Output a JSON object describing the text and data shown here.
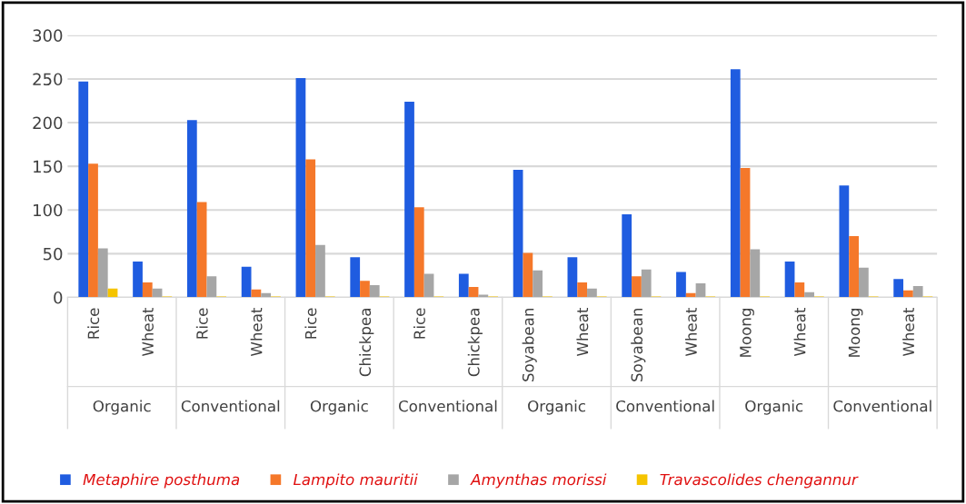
{
  "chart_data": {
    "type": "bar",
    "categories": [
      "Rice",
      "Wheat",
      "Rice",
      "Wheat",
      "Rice",
      "Chickpea",
      "Rice",
      "Chickpea",
      "Soyabean",
      "Wheat",
      "Soyabean",
      "Wheat",
      "Moong",
      "Wheat",
      "Moong",
      "Wheat"
    ],
    "annotations": [
      "Organic",
      "Conventional",
      "Organic",
      "Conventional",
      "Organic",
      "Conventional",
      "Organic",
      "Conventional"
    ],
    "series": [
      {
        "name": "Metaphire posthuma",
        "color": "#1f5ce0",
        "values": [
          247,
          41,
          203,
          35,
          251,
          46,
          224,
          27,
          146,
          46,
          95,
          29,
          261,
          41,
          128,
          21
        ]
      },
      {
        "name": "Lampito mauritii",
        "color": "#f5782a",
        "values": [
          153,
          17,
          109,
          9,
          158,
          19,
          103,
          12,
          51,
          17,
          24,
          5,
          148,
          17,
          70,
          8
        ]
      },
      {
        "name": "Amynthas morissi",
        "color": "#a6a6a6",
        "values": [
          56,
          10,
          24,
          5,
          60,
          14,
          27,
          3,
          31,
          10,
          32,
          16,
          55,
          6,
          34,
          13
        ]
      },
      {
        "name": "Travascolides chengannur",
        "color": "#f5c400",
        "values": [
          10,
          1,
          1,
          1,
          1,
          1,
          1,
          1,
          1,
          1,
          1,
          1,
          1,
          1,
          1,
          1
        ]
      }
    ],
    "ylim": [
      0,
      300
    ],
    "yticks": [
      0,
      50,
      100,
      150,
      200,
      250,
      300
    ],
    "grid": "y",
    "legend": "bottom"
  }
}
